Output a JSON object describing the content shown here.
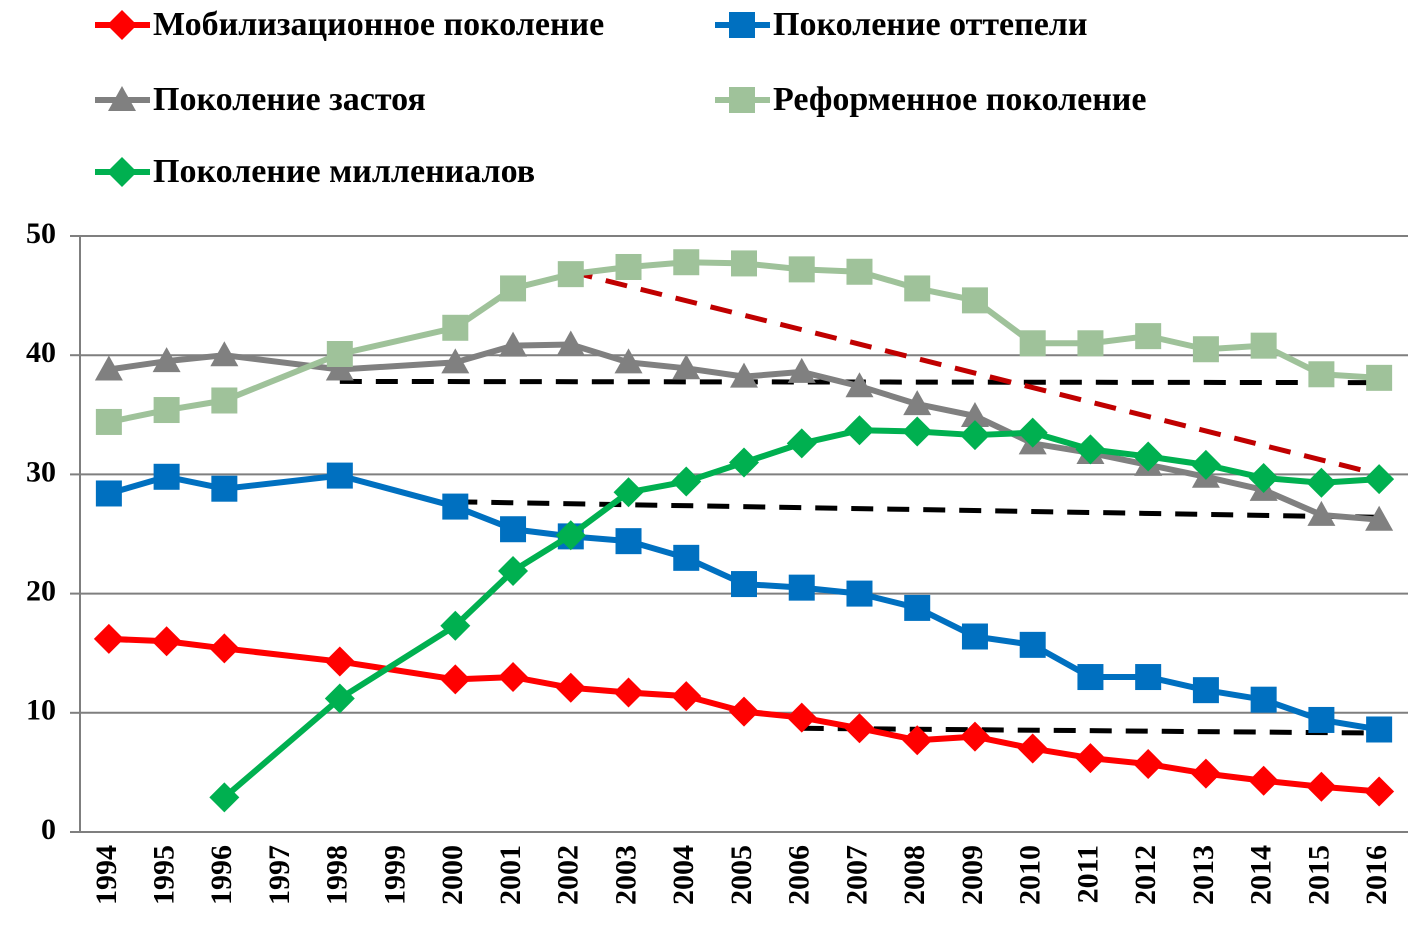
{
  "chart_data": {
    "type": "line",
    "x": [
      1994,
      1995,
      1996,
      1998,
      2000,
      2001,
      2002,
      2003,
      2004,
      2005,
      2006,
      2007,
      2008,
      2009,
      2010,
      2011,
      2012,
      2013,
      2014,
      2015,
      2016
    ],
    "xlim": [
      1993.5,
      2016.5
    ],
    "xticks": [
      1994,
      1995,
      1996,
      1997,
      1998,
      1999,
      2000,
      2001,
      2002,
      2003,
      2004,
      2005,
      2006,
      2007,
      2008,
      2009,
      2010,
      2011,
      2012,
      2013,
      2014,
      2015,
      2016
    ],
    "ylim": [
      0,
      50
    ],
    "yticks": [
      0,
      10,
      20,
      30,
      40,
      50
    ],
    "grid": true,
    "series": [
      {
        "name": "Мобилизационное поколение",
        "color": "#ff0000",
        "marker": "diamond",
        "values": [
          16.2,
          16.0,
          15.4,
          14.3,
          12.8,
          13.0,
          12.1,
          11.7,
          11.4,
          10.1,
          9.6,
          8.7,
          7.7,
          8.0,
          7.0,
          6.2,
          5.7,
          4.9,
          4.3,
          3.8,
          3.4
        ]
      },
      {
        "name": "Поколение оттепели",
        "color": "#0070c0",
        "marker": "square",
        "values": [
          28.4,
          29.8,
          28.8,
          29.9,
          27.3,
          25.4,
          24.8,
          24.4,
          23.0,
          20.8,
          20.5,
          20.0,
          18.8,
          16.4,
          15.7,
          13.0,
          13.0,
          11.9,
          11.1,
          9.4,
          8.6
        ]
      },
      {
        "name": "Поколение застоя",
        "color": "#808080",
        "marker": "triangle",
        "values": [
          38.8,
          39.5,
          40.0,
          38.8,
          39.4,
          40.8,
          40.9,
          39.4,
          38.9,
          38.2,
          38.6,
          37.4,
          35.9,
          34.9,
          32.6,
          31.8,
          30.8,
          29.8,
          28.7,
          26.6,
          26.2
        ]
      },
      {
        "name": "Реформенное поколение",
        "color": "#9fc29a",
        "marker": "square",
        "values": [
          34.4,
          35.4,
          36.2,
          40.1,
          42.3,
          45.6,
          46.8,
          47.4,
          47.8,
          47.7,
          47.2,
          47.0,
          45.6,
          44.6,
          41.0,
          41.0,
          41.6,
          40.5,
          40.8,
          38.4,
          38.1
        ]
      },
      {
        "name": "Поколение миллениалов",
        "color": "#00b050",
        "marker": "diamond",
        "values": [
          null,
          null,
          2.9,
          11.2,
          17.3,
          21.9,
          24.9,
          28.5,
          29.4,
          31.0,
          32.6,
          33.7,
          33.6,
          33.3,
          33.5,
          32.1,
          31.5,
          30.8,
          29.7,
          29.3,
          29.6
        ]
      }
    ],
    "trendlines": [
      {
        "color": "#000000",
        "x": [
          1998,
          2016
        ],
        "values": [
          37.8,
          37.7
        ]
      },
      {
        "color": "#000000",
        "x": [
          2000,
          2016
        ],
        "values": [
          27.7,
          26.4
        ]
      },
      {
        "color": "#000000",
        "x": [
          2006,
          2016
        ],
        "values": [
          8.7,
          8.3
        ]
      },
      {
        "color": "#c00000",
        "x": [
          2002,
          2016
        ],
        "values": [
          47.0,
          30.0
        ]
      }
    ]
  }
}
